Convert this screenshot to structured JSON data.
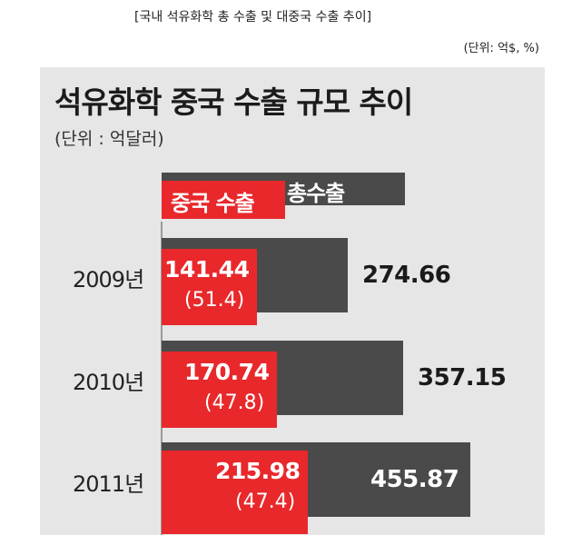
{
  "caption": "[국내 석유화학 총 수출 및 대중국 수출 추이]",
  "unit_note": "(단위: 억$, %)",
  "chart_data": {
    "type": "bar",
    "title": "석유화학 중국 수출 규모 추이",
    "subtitle": "(단위 : 억달러)",
    "categories": [
      "2009년",
      "2010년",
      "2011년"
    ],
    "series": [
      {
        "name": "중국 수출",
        "values": [
          141.44,
          170.74,
          215.98
        ],
        "labels": [
          "141.44",
          "170.74",
          "215.98"
        ],
        "share_labels": [
          "(51.4)",
          "(47.8)",
          "(47.4)"
        ],
        "share_values": [
          51.4,
          47.8,
          47.4
        ],
        "color": "#e8282b"
      },
      {
        "name": "총수출",
        "values": [
          274.66,
          357.15,
          455.87
        ],
        "labels": [
          "274.66",
          "357.15",
          "455.87"
        ],
        "color": "#4a4a4a"
      }
    ],
    "orientation": "horizontal",
    "legend": "top"
  }
}
